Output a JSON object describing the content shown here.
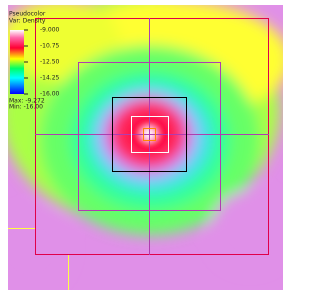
{
  "legend": {
    "title": "Pseudocolor",
    "variable": "Var: Density",
    "ticks": [
      "-9.000",
      "-10.75",
      "-12.50",
      "-14.25",
      "-16.00"
    ],
    "max": "Max: -9.272",
    "min": "Min: -16.00"
  }
}
